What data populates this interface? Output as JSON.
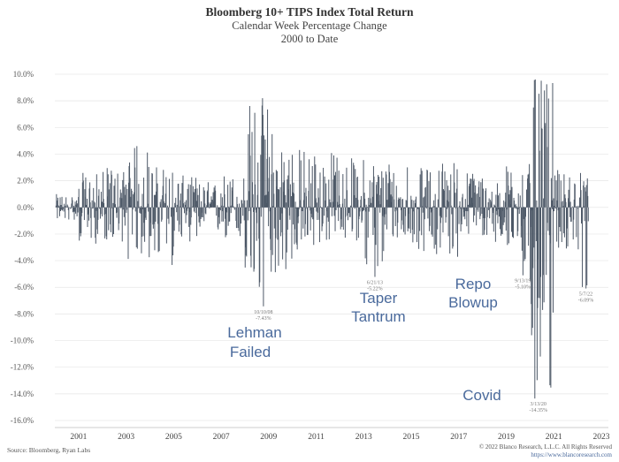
{
  "title": "Bloomberg 10+ TIPS Index Total Return",
  "subtitle_1": "Calendar Week Percentage Change",
  "subtitle_2": "2000 to Date",
  "source": "Source: Bloomberg, Ryan Labs",
  "copyright": "© 2022 Blanco Research, L.L.C. All Rights Reserved",
  "website": "https://www.blancoresearch.com",
  "colors": {
    "series": "#4d5867",
    "annotation": "#4a6a9c",
    "grid": "#e6e6e6"
  },
  "chart_data": {
    "type": "bar",
    "title": "Bloomberg 10+ TIPS Index Total Return",
    "subtitle": "Calendar Week Percentage Change, 2000 to Date",
    "xlabel": "",
    "ylabel": "",
    "xlim": [
      2000.0,
      2023.3
    ],
    "ylim": [
      -16.0,
      10.0
    ],
    "grid": true,
    "y_ticks": [
      "10.0%",
      "8.0%",
      "6.0%",
      "4.0%",
      "2.0%",
      "0.0%",
      "-2.0%",
      "-4.0%",
      "-6.0%",
      "-8.0%",
      "-10.0%",
      "-12.0%",
      "-14.0%",
      "-16.0%"
    ],
    "y_tick_values": [
      10,
      8,
      6,
      4,
      2,
      0,
      -2,
      -4,
      -6,
      -8,
      -10,
      -12,
      -14,
      -16
    ],
    "x_ticks": [
      "2001",
      "2003",
      "2005",
      "2007",
      "2009",
      "2011",
      "2013",
      "2015",
      "2017",
      "2019",
      "2021",
      "2023"
    ],
    "x_tick_values": [
      2001,
      2003,
      2005,
      2007,
      2009,
      2011,
      2013,
      2015,
      2017,
      2019,
      2021,
      2023
    ],
    "series": [
      {
        "values_by_year": [
          {
            "year": 2000,
            "lo": -1.0,
            "hi": 1.0
          },
          {
            "year": 2001,
            "lo": -2.8,
            "hi": 2.6
          },
          {
            "year": 2002,
            "lo": -2.6,
            "hi": 3.0
          },
          {
            "year": 2003,
            "lo": -4.0,
            "hi": 4.6
          },
          {
            "year": 2004,
            "lo": -4.5,
            "hi": 3.2
          },
          {
            "year": 2005,
            "lo": -2.6,
            "hi": 2.4
          },
          {
            "year": 2006,
            "lo": -2.2,
            "hi": 2.0
          },
          {
            "year": 2007,
            "lo": -2.6,
            "hi": 2.6
          },
          {
            "year": 2008,
            "lo": -7.4,
            "hi": 8.2
          },
          {
            "year": 2009,
            "lo": -5.1,
            "hi": 5.5
          },
          {
            "year": 2010,
            "lo": -3.6,
            "hi": 4.6
          },
          {
            "year": 2011,
            "lo": -2.8,
            "hi": 4.3
          },
          {
            "year": 2012,
            "lo": -2.5,
            "hi": 3.8
          },
          {
            "year": 2013,
            "lo": -5.2,
            "hi": 3.8
          },
          {
            "year": 2014,
            "lo": -2.6,
            "hi": 3.8
          },
          {
            "year": 2015,
            "lo": -3.3,
            "hi": 3.0
          },
          {
            "year": 2016,
            "lo": -3.8,
            "hi": 3.7
          },
          {
            "year": 2017,
            "lo": -2.2,
            "hi": 2.8
          },
          {
            "year": 2018,
            "lo": -2.6,
            "hi": 2.0
          },
          {
            "year": 2019,
            "lo": -5.1,
            "hi": 3.3
          },
          {
            "year": 2020,
            "lo": -14.5,
            "hi": 9.6
          },
          {
            "year": 2021,
            "lo": -3.3,
            "hi": 2.8
          },
          {
            "year": 2022,
            "lo": -6.2,
            "hi": 2.8
          }
        ]
      }
    ],
    "annotations": [
      {
        "date": "10/10/08",
        "value": "-7.43%",
        "label": "Lehman Failed",
        "x": 2008.78,
        "y": -7.43
      },
      {
        "date": "6/21/13",
        "value": "-5.22%",
        "label": "Taper Tantrum",
        "x": 2013.47,
        "y": -5.22
      },
      {
        "date": "9/13/19",
        "value": "-5.10%",
        "label": "Repo Blowup",
        "x": 2019.7,
        "y": -5.1
      },
      {
        "date": "3/13/20",
        "value": "-14.35%",
        "label": "Covid",
        "x": 2020.2,
        "y": -14.35
      },
      {
        "date": "5/7/22",
        "value": "-6.09%",
        "label": "",
        "x": 2022.35,
        "y": -6.09
      }
    ]
  },
  "event_labels": {
    "lehman_1": "Lehman",
    "lehman_2": "Failed",
    "taper_1": "Taper",
    "taper_2": "Tantrum",
    "repo_1": "Repo",
    "repo_2": "Blowup",
    "covid": "Covid"
  }
}
